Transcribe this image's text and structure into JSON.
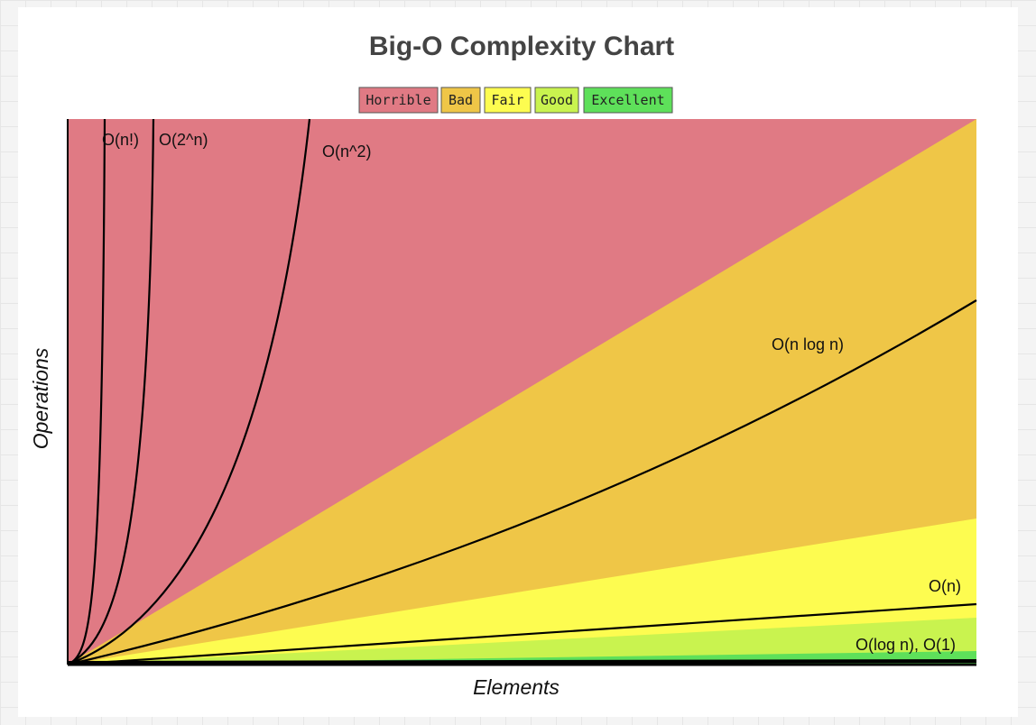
{
  "title": "Big-O Complexity Chart",
  "legend": [
    {
      "label": "Horrible",
      "color": "#e07a84"
    },
    {
      "label": "Bad",
      "color": "#efc647"
    },
    {
      "label": "Fair",
      "color": "#fdfc50"
    },
    {
      "label": "Good",
      "color": "#c9f34f"
    },
    {
      "label": "Excellent",
      "color": "#5ee05a"
    }
  ],
  "curves": [
    {
      "label": "O(n!)"
    },
    {
      "label": "O(2^n)"
    },
    {
      "label": "O(n^2)"
    },
    {
      "label": "O(n log n)"
    },
    {
      "label": "O(n)"
    },
    {
      "label": "O(log n), O(1)"
    }
  ],
  "x_axis_label": "Elements",
  "y_axis_label": "Operations"
}
